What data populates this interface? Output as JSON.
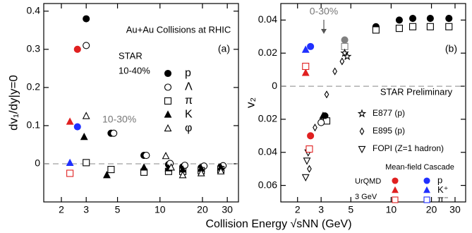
{
  "xlabel": "Collision Energy √sNN (GeV)",
  "chart_data": [
    {
      "type": "scatter",
      "ylabel": "dv₁/dy|y=0",
      "title": "Au+Au Collisions at RHIC",
      "panel": "(a)",
      "legend_title": "STAR",
      "legend_subtitle": "10-40%",
      "annotation": "10-30%",
      "log_x": true,
      "xlim": [
        1.5,
        36
      ],
      "xticks": [
        2,
        3,
        5,
        10,
        20,
        30
      ],
      "ylim": [
        -0.1,
        0.42
      ],
      "yticks": [
        0,
        0.1,
        0.2,
        0.3,
        0.4
      ],
      "zero_line": true,
      "series": [
        {
          "name": "p",
          "marker": "circle",
          "filled": true,
          "color": "#000000",
          "x": [
            3.0,
            4.5,
            7.7,
            11.5,
            14.5,
            19.6,
            27
          ],
          "values": [
            0.38,
            0.08,
            0.022,
            -0.002,
            -0.008,
            -0.01,
            -0.008
          ]
        },
        {
          "name": "Λ",
          "marker": "circle",
          "filled": false,
          "color": "#000000",
          "x": [
            3.0,
            4.7,
            8.0,
            11.8,
            15,
            20.5,
            28
          ],
          "values": [
            0.31,
            0.08,
            0.022,
            0.001,
            -0.004,
            -0.006,
            -0.005
          ]
        },
        {
          "name": "π",
          "marker": "square",
          "filled": false,
          "color": "#000000",
          "x": [
            3.0,
            4.5,
            7.7,
            11.5,
            14.5,
            19.6,
            27
          ],
          "values": [
            0.003,
            -0.015,
            -0.022,
            -0.02,
            -0.02,
            -0.018,
            -0.015
          ]
        },
        {
          "name": "K",
          "marker": "triangle",
          "filled": true,
          "color": "#000000",
          "x": [
            2.9,
            4.2,
            7.7,
            11.5,
            14.5,
            19.6,
            27
          ],
          "values": [
            0.07,
            -0.03,
            -0.01,
            -0.012,
            -0.015,
            -0.013,
            -0.01
          ]
        },
        {
          "name": "φ",
          "marker": "triangle",
          "filled": false,
          "color": "#000000",
          "x": [
            3.0,
            11,
            12,
            14.5,
            19.6,
            27
          ],
          "values": [
            0.125,
            0.02,
            -0.01,
            -0.03,
            -0.025,
            -0.02
          ]
        },
        {
          "marker": "circle",
          "filled": true,
          "color": "#e02020",
          "x": [
            2.6
          ],
          "values": [
            0.3
          ]
        },
        {
          "marker": "triangle",
          "filled": true,
          "color": "#e02020",
          "x": [
            2.3
          ],
          "values": [
            0.11
          ]
        },
        {
          "marker": "square",
          "filled": false,
          "color": "#e02020",
          "x": [
            2.3
          ],
          "values": [
            -0.025
          ]
        },
        {
          "marker": "circle",
          "filled": true,
          "color": "#2030ff",
          "x": [
            2.6
          ],
          "values": [
            0.097
          ]
        },
        {
          "marker": "triangle",
          "filled": true,
          "color": "#2030ff",
          "x": [
            2.3
          ],
          "values": [
            0.002
          ]
        }
      ]
    },
    {
      "type": "scatter",
      "ylabel": "v₂",
      "panel": "(b)",
      "subtitle": "STAR Preliminary",
      "annotation": "0-30%",
      "legend_title": "Mean-field Cascade",
      "model": "UrQMD",
      "energy": "3 GeV",
      "log_x": true,
      "xlim": [
        1.5,
        36
      ],
      "xticks": [
        2,
        3,
        5,
        10,
        20,
        30
      ],
      "ylim": [
        -0.07,
        0.05
      ],
      "yticks": [
        0.04,
        0.02,
        0,
        {
          "value": -0.02,
          "label": "0.02"
        },
        {
          "value": -0.04,
          "label": "0.04"
        },
        {
          "value": -0.06,
          "label": "0.06"
        }
      ],
      "zero_line": true,
      "series": [
        {
          "marker": "circle",
          "filled": true,
          "color": "#000000",
          "x": [
            3.2,
            7.7,
            11.5,
            14.5,
            19.6,
            27
          ],
          "values": [
            -0.018,
            0.036,
            0.04,
            0.041,
            0.041,
            0.041
          ]
        },
        {
          "marker": "square",
          "filled": false,
          "color": "#000000",
          "x": [
            3.3,
            7.7,
            11.5,
            14.5,
            19.6,
            27
          ],
          "values": [
            -0.021,
            0.034,
            0.035,
            0.036,
            0.036,
            0.036
          ]
        },
        {
          "marker": "circle",
          "filled": false,
          "color": "#000000",
          "x": [
            3.0
          ],
          "values": [
            -0.022
          ]
        },
        {
          "marker": "triangle",
          "filled": true,
          "color": "#000000",
          "x": [
            3.1
          ],
          "values": [
            -0.018
          ]
        },
        {
          "marker": "circle",
          "filled": true,
          "color": "#808080",
          "x": [
            4.5
          ],
          "values": [
            0.028
          ]
        },
        {
          "marker": "square",
          "filled": false,
          "color": "#808080",
          "x": [
            4.5
          ],
          "values": [
            0.024
          ]
        },
        {
          "name": "E877 (p)",
          "marker": "star",
          "filled": false,
          "color": "#000000",
          "x": [
            4.5,
            4.7
          ],
          "values": [
            0.02,
            0.018
          ]
        },
        {
          "name": "E895 (p)",
          "marker": "diamond",
          "filled": false,
          "color": "#000000",
          "x": [
            2.45,
            2.7,
            3.3,
            3.8,
            4.3
          ],
          "values": [
            -0.05,
            -0.025,
            -0.005,
            0.009,
            0.015
          ]
        },
        {
          "name": "FOPI (Z=1 hadron)",
          "marker": "down-triangle",
          "filled": false,
          "color": "#000000",
          "x": [
            2.3,
            2.35,
            2.4
          ],
          "values": [
            -0.055,
            -0.045,
            -0.04
          ]
        },
        {
          "name": "p",
          "marker": "circle",
          "filled": true,
          "color": "#e02020",
          "x": [
            2.5
          ],
          "values": [
            -0.03
          ]
        },
        {
          "name": "K⁺",
          "marker": "triangle",
          "filled": true,
          "color": "#e02020",
          "x": [
            2.3
          ],
          "values": [
            0.008
          ]
        },
        {
          "name": "π⁻",
          "marker": "square",
          "filled": false,
          "color": "#e02020",
          "x": [
            2.3,
            2.45
          ],
          "values": [
            0.012,
            -0.038
          ]
        },
        {
          "marker": "circle",
          "filled": true,
          "color": "#2030ff",
          "x": [
            2.5
          ],
          "values": [
            0.024
          ]
        },
        {
          "marker": "triangle",
          "filled": true,
          "color": "#2030ff",
          "x": [
            2.3
          ],
          "values": [
            0.022
          ]
        },
        {
          "marker": "square",
          "filled": false,
          "color": "#2030ff",
          "x": [],
          "values": []
        }
      ]
    }
  ]
}
